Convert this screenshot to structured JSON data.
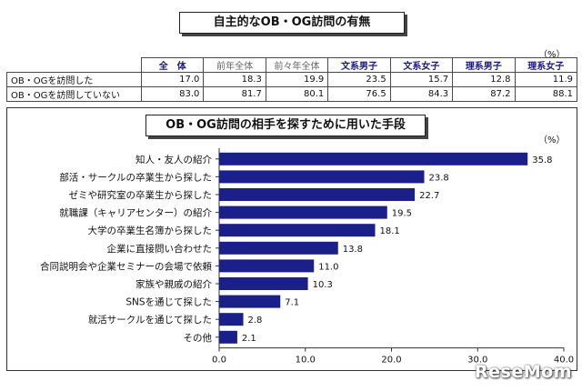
{
  "table": {
    "title": "自主的なOB・OG訪問の有無",
    "unit": "（%）",
    "headers": [
      "全　体",
      "前年全体",
      "前々年全体",
      "文系男子",
      "文系女子",
      "理系男子",
      "理系女子"
    ],
    "rows": [
      {
        "label": "OB・OGを訪問した",
        "values": [
          "17.0",
          "18.3",
          "19.9",
          "23.5",
          "15.7",
          "12.8",
          "11.9"
        ]
      },
      {
        "label": "OB・OGを訪問していない",
        "values": [
          "83.0",
          "81.7",
          "80.1",
          "76.5",
          "84.3",
          "87.2",
          "88.1"
        ]
      }
    ]
  },
  "chart_data": {
    "type": "bar",
    "orientation": "horizontal",
    "title": "OB・OG訪問の相手を探すために用いた手段",
    "unit_label": "（%）",
    "categories": [
      "知人・友人の紹介",
      "部活・サークルの卒業生から探した",
      "ゼミや研究室の卒業生から探した",
      "就職課（キャリアセンター）の紹介",
      "大学の卒業生名簿から探した",
      "企業に直接問い合わせた",
      "合同説明会や企業セミナーの会場で依頼",
      "家族や親戚の紹介",
      "SNSを通じて探した",
      "就活サークルを通じて探した",
      "その他"
    ],
    "values": [
      35.8,
      23.8,
      22.7,
      19.5,
      18.1,
      13.8,
      11.0,
      10.3,
      7.1,
      2.8,
      2.1
    ],
    "xlim": [
      0,
      40
    ],
    "ticks": [
      "0.0",
      "10.0",
      "20.0",
      "30.0",
      "40.0"
    ],
    "bar_color": "#1b1f8a",
    "grid": false
  },
  "watermark": "ReseMom"
}
